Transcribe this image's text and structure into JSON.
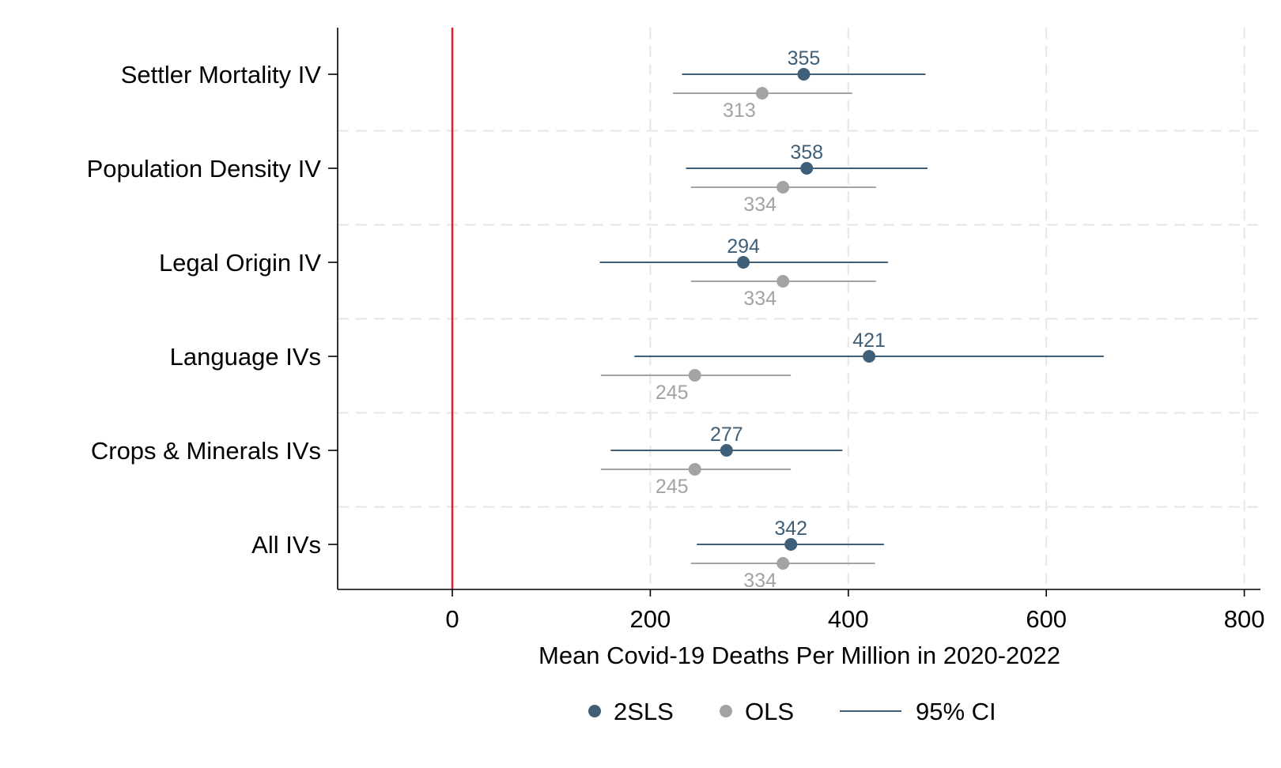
{
  "chart_data": {
    "type": "forest",
    "xlabel": "Mean Covid-19 Deaths Per Million in 2020-2022",
    "xlim": [
      -118,
      810
    ],
    "xticks": [
      0,
      200,
      400,
      600,
      800
    ],
    "reference_line": {
      "x": 0,
      "color": "#e8211f"
    },
    "grid": true,
    "legend_position": "bottom",
    "categories": [
      "Settler Mortality IV",
      "Population Density IV",
      "Legal Origin IV",
      "Language IVs",
      "Crops & Minerals IVs",
      "All IVs"
    ],
    "series": [
      {
        "name": "2SLS",
        "color": "#3f5f79",
        "values": [
          355,
          358,
          294,
          421,
          277,
          342
        ],
        "labels": [
          "355",
          "358",
          "294",
          "421",
          "277",
          "342"
        ],
        "ci_low": [
          232,
          236,
          149,
          184,
          160,
          247
        ],
        "ci_high": [
          478,
          480,
          440,
          658,
          394,
          436
        ]
      },
      {
        "name": "OLS",
        "color": "#a3a3a3",
        "values": [
          313,
          334,
          334,
          245,
          245,
          334
        ],
        "labels": [
          "313",
          "334",
          "334",
          "245",
          "245",
          "334"
        ],
        "ci_low": [
          223,
          241,
          241,
          150,
          150,
          241
        ],
        "ci_high": [
          404,
          428,
          428,
          342,
          342,
          427
        ]
      }
    ],
    "legend": {
      "series_2sls": "2SLS",
      "series_ols": "OLS",
      "ci": "95% CI"
    }
  }
}
